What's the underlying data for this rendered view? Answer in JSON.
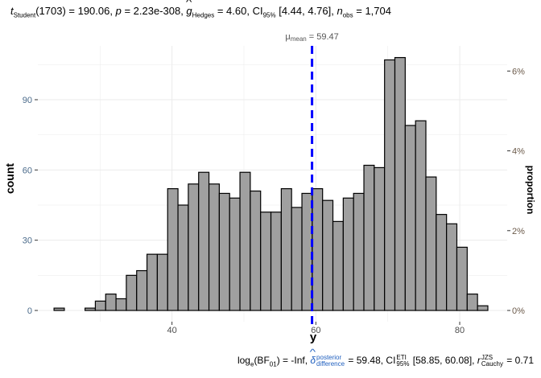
{
  "title": {
    "t_symbol": "t",
    "t_sub": "Student",
    "df": "(1703) = 190.06, ",
    "p_symbol": "p",
    "p_value": " = 2.23e-308, ",
    "g_symbol": "g",
    "g_sub": "Hedges",
    "g_value": " = 4.60, CI",
    "ci_sub": "95%",
    "ci_value": " [4.44, 4.76], ",
    "n_symbol": "n",
    "n_sub": "obs",
    "n_value": " = 1,704"
  },
  "caption": {
    "log": "log",
    "log_sub": "e",
    "bf": "(BF",
    "bf_sub": "01",
    "bf_value": ") = -Inf, ",
    "delta_symbol": "δ",
    "delta_sup": "posterior",
    "delta_sub": "difference",
    "delta_value": " = 59.48, CI",
    "ci_sup": "ETI",
    "ci_sub": "95%",
    "ci_value": " [58.85, 60.08], ",
    "r_symbol": "r",
    "r_sup": "JZS",
    "r_sub": "Cauchy",
    "r_value": " = 0.71"
  },
  "chart_data": {
    "type": "bar",
    "subtype": "histogram",
    "bin_start": 23.6,
    "binwidth": 1.436,
    "counts": [
      1,
      0,
      0,
      1,
      4,
      7,
      5,
      15,
      17,
      24,
      24,
      52,
      45,
      54,
      59,
      54,
      50,
      48,
      59,
      51,
      42,
      42,
      52,
      44,
      50,
      52,
      47,
      38,
      48,
      50,
      62,
      61,
      107,
      108,
      79,
      81,
      57,
      41,
      37,
      27,
      7,
      2
    ],
    "total": 1704,
    "xlabel": "y",
    "ylabel": "count",
    "ylabel_right": "proportion",
    "xlim": [
      21.35,
      86.6
    ],
    "ylim": [
      -4.8,
      113
    ],
    "x_ticks": [
      40,
      60,
      80
    ],
    "x_tick_labels": [
      "40",
      "60",
      "80"
    ],
    "y_ticks": [
      0,
      30,
      60,
      90
    ],
    "y_tick_labels": [
      "0",
      "30",
      "60",
      "90"
    ],
    "y2_ticks": [
      0,
      0.02,
      0.04,
      0.06
    ],
    "y2_tick_labels": [
      "0%",
      "2%",
      "4%",
      "6%"
    ],
    "grid": true,
    "mean_line": {
      "value": 59.47,
      "label_symbol": "μ",
      "label_sub": "mean",
      "label_value": " = 59.47",
      "color": "#0000ff"
    },
    "bar_fill": "#a0a0a0",
    "bar_stroke": "#000000"
  }
}
